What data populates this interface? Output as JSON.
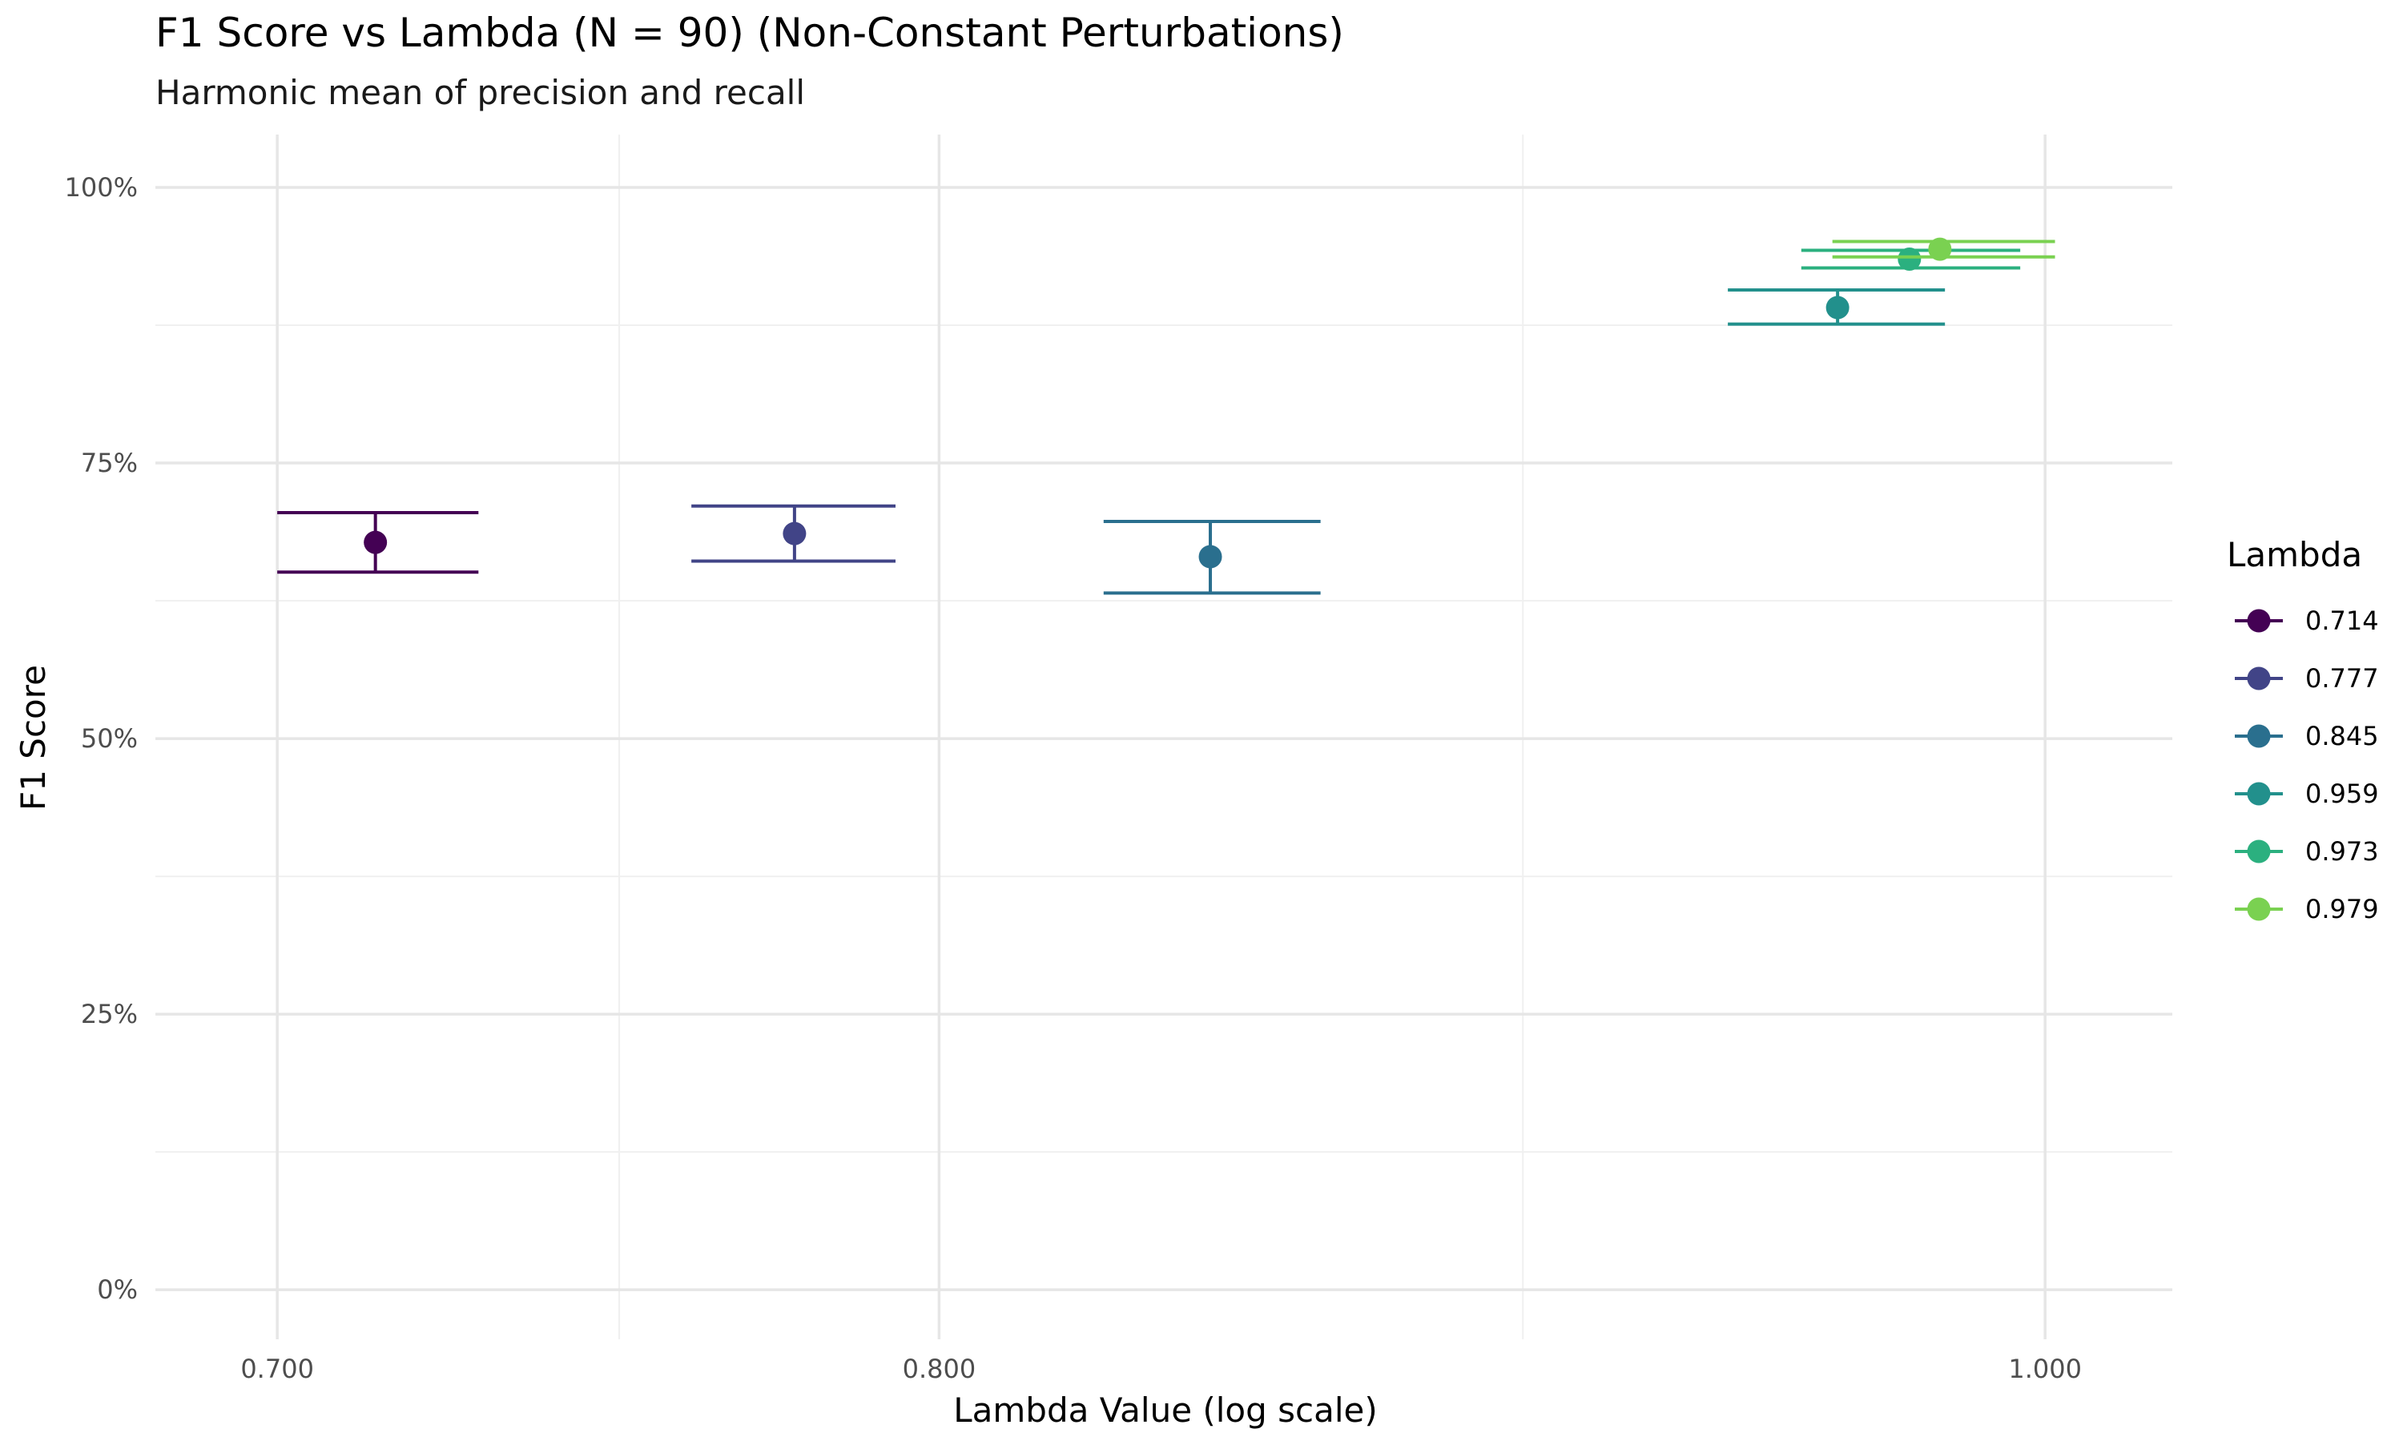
{
  "chart_data": {
    "type": "scatter",
    "title": "F1 Score vs Lambda (N = 90) (Non-Constant Perturbations)",
    "subtitle": "Harmonic mean of precision and recall",
    "xlabel": "Lambda Value (log scale)",
    "ylabel": "F1 Score",
    "x_scale": "log",
    "xlim": [
      0.683,
      1.026
    ],
    "ylim": [
      -0.045,
      1.048
    ],
    "x_ticks": [
      {
        "value": 0.7,
        "label": "0.700"
      },
      {
        "value": 0.8,
        "label": "0.800"
      },
      {
        "value": 1.0,
        "label": "1.000"
      }
    ],
    "x_minor_ticks": [
      0.75,
      0.9
    ],
    "y_ticks": [
      {
        "value": 0,
        "label": "0%"
      },
      {
        "value": 0.25,
        "label": "25%"
      },
      {
        "value": 0.5,
        "label": "50%"
      },
      {
        "value": 0.75,
        "label": "75%"
      },
      {
        "value": 1.0,
        "label": "100%"
      }
    ],
    "y_minor_ticks": [
      0.125,
      0.375,
      0.625,
      0.875
    ],
    "grid": true,
    "legend": {
      "title": "Lambda",
      "position": "right"
    },
    "series": [
      {
        "name": "0.714",
        "color": "#440154",
        "x": 0.714,
        "y": 0.678,
        "y_low": 0.651,
        "y_high": 0.705,
        "x_low": 0.7,
        "x_high": 0.729
      },
      {
        "name": "0.777",
        "color": "#414487",
        "x": 0.777,
        "y": 0.686,
        "y_low": 0.661,
        "y_high": 0.711,
        "x_low": 0.761,
        "x_high": 0.793
      },
      {
        "name": "0.845",
        "color": "#2A6F8E",
        "x": 0.845,
        "y": 0.665,
        "y_low": 0.632,
        "y_high": 0.697,
        "x_low": 0.827,
        "x_high": 0.864
      },
      {
        "name": "0.959",
        "color": "#22908C",
        "x": 0.959,
        "y": 0.891,
        "y_low": 0.876,
        "y_high": 0.907,
        "x_low": 0.938,
        "x_high": 0.98
      },
      {
        "name": "0.973",
        "color": "#2BB07F",
        "x": 0.973,
        "y": 0.935,
        "y_low": 0.927,
        "y_high": 0.943,
        "x_low": 0.952,
        "x_high": 0.995
      },
      {
        "name": "0.979",
        "color": "#7AD151",
        "x": 0.979,
        "y": 0.944,
        "y_low": 0.937,
        "y_high": 0.951,
        "x_low": 0.958,
        "x_high": 1.002
      }
    ]
  }
}
